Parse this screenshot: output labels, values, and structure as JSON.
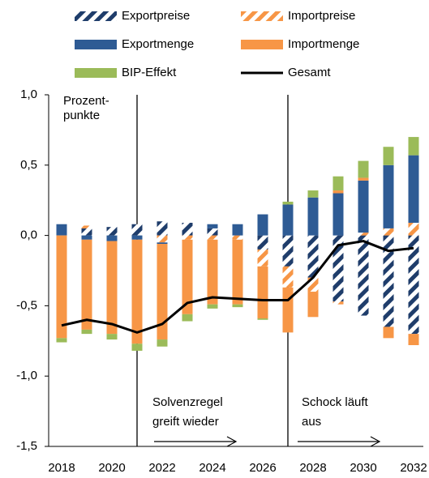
{
  "chart_data": {
    "type": "bar",
    "categories": [
      "2018",
      null,
      "2020",
      null,
      "2022",
      null,
      "2024",
      null,
      "2026",
      null,
      "2028",
      null,
      "2030",
      null,
      "2032"
    ],
    "series": [
      {
        "name": "Exportpreise",
        "color": "#1f3d6b",
        "pattern": true,
        "values": [
          0,
          0.05,
          0.06,
          0.08,
          0.1,
          0.09,
          0.05,
          0,
          -0.1,
          -0.22,
          -0.3,
          -0.47,
          -0.57,
          -0.65,
          -0.7
        ]
      },
      {
        "name": "Importpreise",
        "color": "#f79646",
        "pattern": true,
        "values": [
          0,
          0.02,
          0,
          0,
          -0.05,
          -0.03,
          -0.03,
          -0.03,
          -0.12,
          -0.15,
          -0.1,
          -0.02,
          0.02,
          0.05,
          0.09
        ]
      },
      {
        "name": "Exportmenge",
        "color": "#2e5b94",
        "values": [
          0.08,
          -0.03,
          -0.04,
          -0.03,
          -0.01,
          0,
          0.03,
          0.08,
          0.15,
          0.22,
          0.27,
          0.3,
          0.37,
          0.45,
          0.48
        ]
      },
      {
        "name": "Importmenge",
        "color": "#f79646",
        "values": [
          -0.73,
          -0.64,
          -0.66,
          -0.74,
          -0.68,
          -0.53,
          -0.46,
          -0.46,
          -0.37,
          -0.32,
          -0.18,
          0.02,
          0.02,
          -0.08,
          -0.08
        ]
      },
      {
        "name": "BIP-Effekt",
        "color": "#9bbb59",
        "values": [
          -0.03,
          -0.03,
          -0.04,
          -0.05,
          -0.05,
          -0.05,
          -0.03,
          -0.02,
          -0.01,
          0.02,
          0.05,
          0.1,
          0.12,
          0.13,
          0.13
        ]
      },
      {
        "name": "Gesamt",
        "color": "#000000",
        "kind": "line",
        "values": [
          -0.64,
          -0.6,
          -0.63,
          -0.69,
          -0.63,
          -0.48,
          -0.44,
          -0.45,
          -0.46,
          -0.46,
          -0.3,
          -0.07,
          -0.04,
          -0.11,
          -0.09
        ]
      }
    ],
    "ylim": [
      -1.5,
      1.0
    ],
    "yticks": [
      {
        "value": -1.5,
        "label": "-1,5"
      },
      {
        "value": -1,
        "label": "-1,0"
      },
      {
        "value": -0.5,
        "label": "-0,5"
      },
      {
        "value": 0,
        "label": "0,0"
      },
      {
        "value": 0.5,
        "label": "0,5"
      },
      {
        "value": 1,
        "label": "1,0"
      }
    ],
    "unit_label": [
      "Prozent-",
      "punkte"
    ],
    "annotations": [
      {
        "lines": [
          "Solvenzregel",
          "greift wieder"
        ]
      },
      {
        "lines": [
          "Schock läuft",
          "aus"
        ]
      }
    ]
  }
}
